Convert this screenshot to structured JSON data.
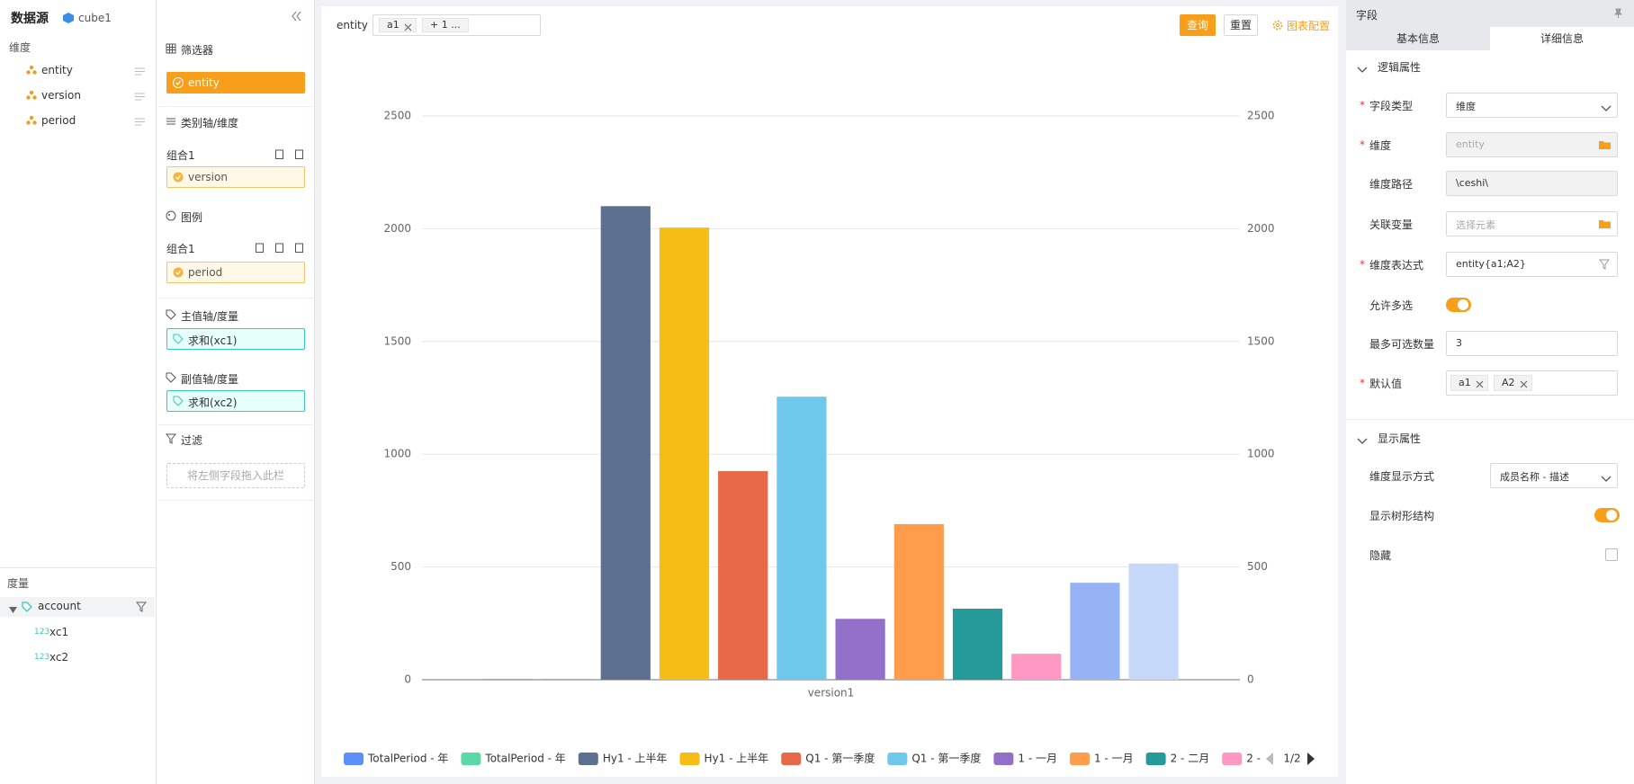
{
  "sidebar": {
    "title": "数据源",
    "cube": "cube1",
    "dimensions_label": "维度",
    "dimensions": [
      "entity",
      "version",
      "period"
    ],
    "measures_label": "度量",
    "measure_group": "account",
    "measure_icon": "123",
    "measures": [
      "xc1",
      "xc2"
    ]
  },
  "config": {
    "filter_title": "筛选器",
    "filter_field": "entity",
    "category_title": "类别轴/维度",
    "category_group": "组合1",
    "category_field": "version",
    "legend_title": "图例",
    "legend_group": "组合1",
    "legend_field": "period",
    "primary_title": "主值轴/度量",
    "primary_field": "求和(xc1)",
    "secondary_title": "副值轴/度量",
    "secondary_field": "求和(xc2)",
    "filter2_title": "过滤",
    "drop_hint": "将左侧字段拖入此栏"
  },
  "toolbar": {
    "filter_label": "entity",
    "tags": [
      "a1"
    ],
    "more": "+ 1 ...",
    "query": "查询",
    "reset": "重置",
    "chart_config": "图表配置"
  },
  "chart_data": {
    "type": "bar",
    "categories": [
      "version1"
    ],
    "ylim": [
      0,
      2500
    ],
    "yticks": [
      0,
      500,
      1000,
      1500,
      2000,
      2500
    ],
    "y2lim": [
      0,
      2500
    ],
    "y2ticks": [
      0,
      500,
      1000,
      1500,
      2000,
      2500
    ],
    "grid": true,
    "legend_page": "1/2",
    "series": [
      {
        "name": "TotalPeriod - 年",
        "color": "#5b8ff9",
        "values": [
          3
        ]
      },
      {
        "name": "TotalPeriod - 年",
        "color": "#5ad8a6",
        "values": [
          4
        ]
      },
      {
        "name": "Hy1 - 上半年",
        "color": "#5d7092",
        "values": [
          2100
        ]
      },
      {
        "name": "Hy1 - 上半年",
        "color": "#f6bd16",
        "values": [
          2005
        ]
      },
      {
        "name": "Q1 - 第一季度",
        "color": "#e8684a",
        "values": [
          925
        ]
      },
      {
        "name": "Q1 - 第一季度",
        "color": "#6dc8ec",
        "values": [
          1255
        ]
      },
      {
        "name": "1 - 一月",
        "color": "#9270ca",
        "values": [
          270
        ]
      },
      {
        "name": "1 - 一月",
        "color": "#ff9d4d",
        "values": [
          690
        ]
      },
      {
        "name": "2 - 二月",
        "color": "#269a99",
        "values": [
          315
        ]
      },
      {
        "name": "2 -",
        "color": "#ff99c3",
        "values": [
          115
        ]
      },
      {
        "name": null,
        "color": "#96b3f5",
        "values": [
          430
        ]
      },
      {
        "name": null,
        "color": "#c6d9fb",
        "values": [
          515
        ]
      }
    ]
  },
  "properties": {
    "title": "字段",
    "tabs": [
      "基本信息",
      "详细信息"
    ],
    "required_mark": "*",
    "logic_title": "逻辑属性",
    "logic_rows": [
      {
        "label": "字段类型",
        "required": true,
        "control": "select",
        "value": "维度"
      },
      {
        "label": "维度",
        "required": true,
        "control": "input",
        "disabled": true,
        "placeholder": "entity",
        "icon": "folder"
      },
      {
        "label": "维度路径",
        "required": false,
        "control": "input",
        "disabled": true,
        "value": "\\ceshi\\"
      },
      {
        "label": "关联变量",
        "required": false,
        "control": "input",
        "placeholder": "选择元素",
        "icon": "folder"
      },
      {
        "label": "维度表达式",
        "required": true,
        "control": "input",
        "value": "entity{a1;A2}",
        "icon": "filter"
      },
      {
        "label": "允许多选",
        "required": false,
        "control": "toggle",
        "on": true
      },
      {
        "label": "最多可选数量",
        "required": false,
        "control": "input",
        "value": "3"
      },
      {
        "label": "默认值",
        "required": true,
        "control": "tags",
        "tags": [
          "a1",
          "A2"
        ]
      }
    ],
    "display_title": "显示属性",
    "display_rows": [
      {
        "label": "维度显示方式",
        "required": false,
        "control": "select",
        "value": "成员名称 - 描述"
      },
      {
        "label": "显示树形结构",
        "required": false,
        "control": "toggle",
        "on": true
      },
      {
        "label": "隐藏",
        "required": false,
        "control": "checkbox",
        "on": false
      }
    ]
  }
}
